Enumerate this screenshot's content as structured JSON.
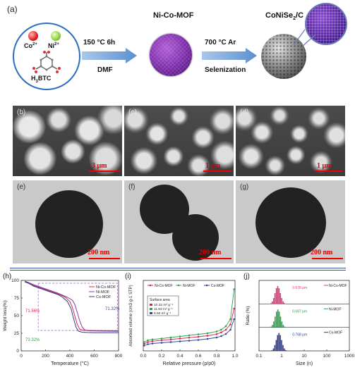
{
  "schematic": {
    "panel_label": "(a)",
    "ion1": "Co",
    "ion1_sup": "2+",
    "ion2": "Ni",
    "ion2_sup": "2+",
    "linker": "H",
    "linker_sub": "3",
    "linker_rest": "BTC",
    "step1_top": "150 °C 6h",
    "step1_bottom": "DMF",
    "mof_title": "Ni-Co-MOF",
    "step2_top": "700 °C  Ar",
    "step2_bottom": "Selenization",
    "product_a": "CoNiSe",
    "product_sub": "2",
    "product_b": "/C"
  },
  "sem_panels": [
    {
      "label": "(b)",
      "scale": "3 μm"
    },
    {
      "label": "(c)",
      "scale": "1 μm"
    },
    {
      "label": "(d)",
      "scale": "1 μm"
    }
  ],
  "tem_panels": [
    {
      "label": "(e)",
      "scale": "200 nm"
    },
    {
      "label": "(f)",
      "scale": "200 nm"
    },
    {
      "label": "(g)",
      "scale": "200 nm"
    }
  ],
  "chart_data": [
    {
      "panel": "(h)",
      "type": "line",
      "xlabel": "Temperature (°C)",
      "ylabel": "Weight loss(%)",
      "xlim": [
        0,
        800
      ],
      "ylim": [
        0,
        100
      ],
      "xticks": [
        0,
        200,
        400,
        600,
        800
      ],
      "yticks": [
        0,
        25,
        50,
        75,
        100
      ],
      "legend": "top-right",
      "annotations": [
        "71.56%",
        "71.32%",
        "73.32%"
      ],
      "series": [
        {
          "name": "Ni-Co-MOF",
          "color": "#d9254b",
          "x": [
            30,
            60,
            100,
            150,
            200,
            250,
            300,
            340,
            370,
            400,
            420,
            440,
            460,
            480,
            500,
            550,
            600,
            700,
            800
          ],
          "y": [
            98,
            96,
            93,
            90,
            87,
            84,
            81,
            78,
            75,
            70,
            62,
            50,
            38,
            31,
            29.5,
            29,
            28.8,
            28.6,
            28.5
          ]
        },
        {
          "name": "Ni-MOF",
          "color": "#7d3fa0",
          "x": [
            30,
            60,
            100,
            150,
            200,
            250,
            300,
            340,
            380,
            420,
            440,
            460,
            480,
            500,
            520,
            550,
            600,
            700,
            800
          ],
          "y": [
            99,
            97,
            94,
            91,
            88,
            85,
            82,
            79,
            76,
            72,
            66,
            55,
            43,
            34,
            30,
            28.5,
            28.2,
            28,
            27.8
          ]
        },
        {
          "name": "Co-MOF",
          "color": "#2f3b8f",
          "x": [
            30,
            60,
            100,
            150,
            200,
            250,
            300,
            340,
            380,
            410,
            430,
            450,
            470,
            500,
            550,
            600,
            700,
            800
          ],
          "y": [
            98,
            96,
            92,
            89,
            86,
            83,
            80,
            76,
            70,
            60,
            46,
            34,
            28,
            26.5,
            26,
            25.8,
            25.8,
            25.8
          ]
        }
      ]
    },
    {
      "panel": "(i)",
      "type": "line",
      "xlabel": "Relative pressure (p/p0)",
      "ylabel": "Absorbed volume (cm3 g-1 STP)",
      "xlim": [
        0.0,
        1.0
      ],
      "xticks": [
        0.0,
        0.2,
        0.4,
        0.6,
        0.8,
        1.0
      ],
      "legend": "top",
      "inset_title": "Surface area",
      "inset_rows": [
        "10.32 m² g⁻¹",
        "11.83 m² g⁻¹",
        "8.50 m² g⁻¹"
      ],
      "series": [
        {
          "name": "Ni-Co-MOF",
          "color": "#d9254b",
          "x": [
            0.01,
            0.05,
            0.1,
            0.2,
            0.3,
            0.4,
            0.5,
            0.6,
            0.7,
            0.8,
            0.85,
            0.9,
            0.95,
            0.99
          ],
          "y": [
            4,
            5,
            5.5,
            6,
            6.5,
            7,
            7.5,
            8,
            8.6,
            9.5,
            10.5,
            12,
            15,
            24
          ]
        },
        {
          "name": "Ni-MOF",
          "color": "#2aa34a",
          "x": [
            0.01,
            0.05,
            0.1,
            0.2,
            0.3,
            0.4,
            0.5,
            0.6,
            0.7,
            0.8,
            0.85,
            0.9,
            0.95,
            0.99
          ],
          "y": [
            5,
            6,
            6.5,
            7,
            7.6,
            8.2,
            8.8,
            9.4,
            10,
            11,
            12,
            14,
            18,
            35
          ]
        },
        {
          "name": "Co-MOF",
          "color": "#3347a0",
          "x": [
            0.01,
            0.05,
            0.1,
            0.2,
            0.3,
            0.4,
            0.5,
            0.6,
            0.7,
            0.8,
            0.85,
            0.9,
            0.95,
            0.99
          ],
          "y": [
            3,
            3.8,
            4.2,
            4.6,
            5,
            5.4,
            5.8,
            6.2,
            6.8,
            7.6,
            8.4,
            9.6,
            12,
            18
          ]
        }
      ]
    },
    {
      "panel": "(j)",
      "type": "bar",
      "xlabel": "Size (n)",
      "ylabel": "Ratio (%)",
      "xscale": "log",
      "xlim": [
        0.1,
        1000
      ],
      "xticks": [
        "0.1",
        "1",
        "10",
        "100",
        "1000"
      ],
      "series": [
        {
          "name": "Ni-Co-MOF",
          "color": "#e2377a",
          "label": "0.678 μm",
          "peak": 0.68
        },
        {
          "name": "Ni-MOF",
          "color": "#2aa34a",
          "label": "0.687 μm",
          "peak": 0.69
        },
        {
          "name": "Co-MOF",
          "color": "#2f3b8f",
          "label": "0.768 μm",
          "peak": 0.77
        }
      ]
    }
  ]
}
